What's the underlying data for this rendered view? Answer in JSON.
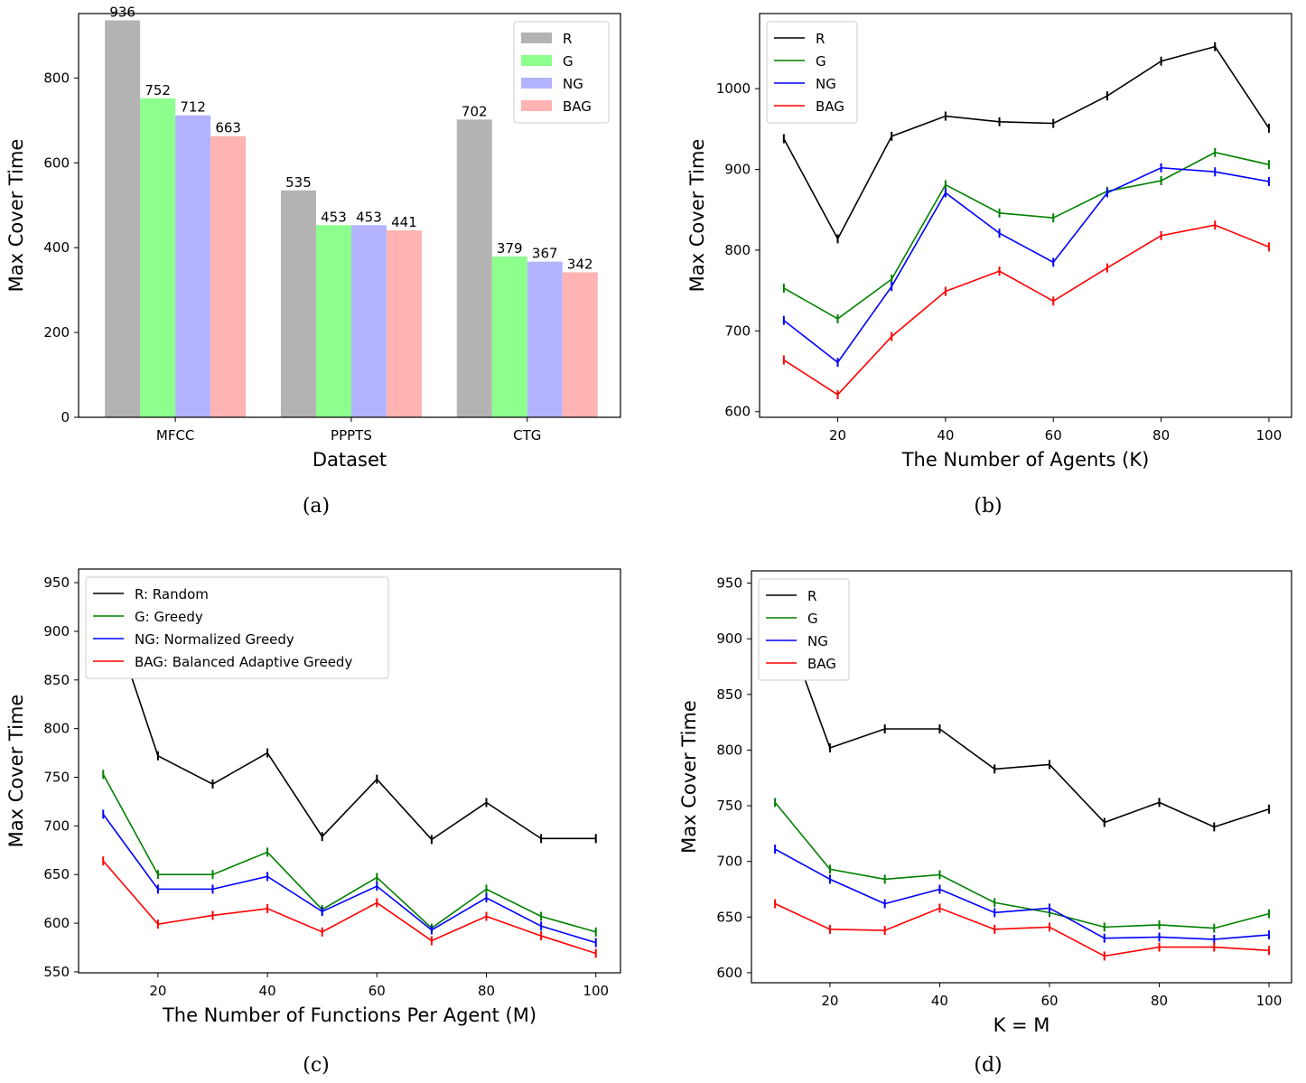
{
  "chart_data": [
    {
      "type": "bar",
      "panel": "(a)",
      "xlabel": "Dataset",
      "ylabel": "Max Cover Time",
      "ylim": [
        0,
        952
      ],
      "yticks": [
        0,
        200,
        400,
        600,
        800
      ],
      "categories": [
        "MFCC",
        "PPPTS",
        "CTG"
      ],
      "legend": "top-right",
      "series": [
        {
          "name": "R",
          "color": "#b3b3b3",
          "values": [
            936,
            535,
            702
          ]
        },
        {
          "name": "G",
          "color": "#8cff8c",
          "values": [
            752,
            453,
            379
          ]
        },
        {
          "name": "NG",
          "color": "#b3b3ff",
          "values": [
            712,
            453,
            367
          ]
        },
        {
          "name": "BAG",
          "color": "#ffb3b3",
          "values": [
            663,
            441,
            342
          ]
        }
      ]
    },
    {
      "type": "line",
      "panel": "(b)",
      "xlabel": "The Number of Agents (K)",
      "ylabel": "Max Cover Time",
      "xlim": [
        5.5,
        104.2
      ],
      "ylim": [
        593,
        1093
      ],
      "xticks": [
        20,
        40,
        60,
        80,
        100
      ],
      "yticks": [
        600,
        700,
        800,
        900,
        1000
      ],
      "legend": "top-left",
      "x": [
        10,
        20,
        30,
        40,
        50,
        60,
        70,
        80,
        90,
        100
      ],
      "series": [
        {
          "name": "R",
          "color": "#000000",
          "values": [
            938,
            814,
            941,
            966,
            959,
            957,
            991,
            1034,
            1052,
            951
          ]
        },
        {
          "name": "G",
          "color": "#008000",
          "values": [
            753,
            715,
            764,
            881,
            846,
            840,
            873,
            886,
            921,
            906
          ]
        },
        {
          "name": "NG",
          "color": "#0000ff",
          "values": [
            713,
            661,
            755,
            871,
            821,
            785,
            871,
            902,
            897,
            885
          ]
        },
        {
          "name": "BAG",
          "color": "#ff0000",
          "values": [
            664,
            621,
            693,
            749,
            774,
            737,
            778,
            818,
            831,
            804
          ]
        }
      ]
    },
    {
      "type": "line",
      "panel": "(c)",
      "xlabel": "The Number of Functions Per Agent (M)",
      "ylabel": "Max Cover Time",
      "xlim": [
        5.5,
        104.5
      ],
      "ylim": [
        549,
        964
      ],
      "xticks": [
        20,
        40,
        60,
        80,
        100
      ],
      "yticks": [
        550,
        600,
        650,
        700,
        750,
        800,
        850,
        900,
        950
      ],
      "legend": "top-left",
      "x": [
        10,
        20,
        30,
        40,
        50,
        60,
        70,
        80,
        90,
        100
      ],
      "series": [
        {
          "name": "R: Random",
          "color": "#000000",
          "values": [
            940,
            772,
            743,
            775,
            689,
            748,
            686,
            724,
            687,
            687
          ]
        },
        {
          "name": "G: Greedy",
          "color": "#008000",
          "values": [
            753,
            650,
            650,
            673,
            614,
            647,
            595,
            635,
            607,
            591
          ]
        },
        {
          "name": "NG: Normalized Greedy",
          "color": "#0000ff",
          "values": [
            712,
            635,
            635,
            648,
            612,
            638,
            593,
            626,
            597,
            580
          ]
        },
        {
          "name": "BAG: Balanced Adaptive Greedy",
          "color": "#ff0000",
          "values": [
            664,
            599,
            608,
            615,
            591,
            621,
            582,
            607,
            587,
            569
          ]
        }
      ]
    },
    {
      "type": "line",
      "panel": "(d)",
      "xlabel": "K = M",
      "ylabel": "Max Cover Time",
      "xlim": [
        5.7,
        104.1
      ],
      "ylim": [
        591,
        961
      ],
      "xticks": [
        20,
        40,
        60,
        80,
        100
      ],
      "yticks": [
        600,
        650,
        700,
        750,
        800,
        850,
        900,
        950
      ],
      "legend": "top-left",
      "x": [
        10,
        20,
        30,
        40,
        50,
        60,
        70,
        80,
        90,
        100
      ],
      "series": [
        {
          "name": "R",
          "color": "#000000",
          "values": [
            937,
            802,
            819,
            819,
            783,
            787,
            735,
            753,
            731,
            747
          ]
        },
        {
          "name": "G",
          "color": "#008000",
          "values": [
            753,
            693,
            684,
            688,
            663,
            654,
            641,
            643,
            640,
            653
          ]
        },
        {
          "name": "NG",
          "color": "#0000ff",
          "values": [
            711,
            684,
            662,
            675,
            654,
            658,
            631,
            632,
            630,
            634
          ]
        },
        {
          "name": "BAG",
          "color": "#ff0000",
          "values": [
            662,
            639,
            638,
            658,
            639,
            641,
            615,
            623,
            623,
            620
          ]
        }
      ]
    }
  ]
}
